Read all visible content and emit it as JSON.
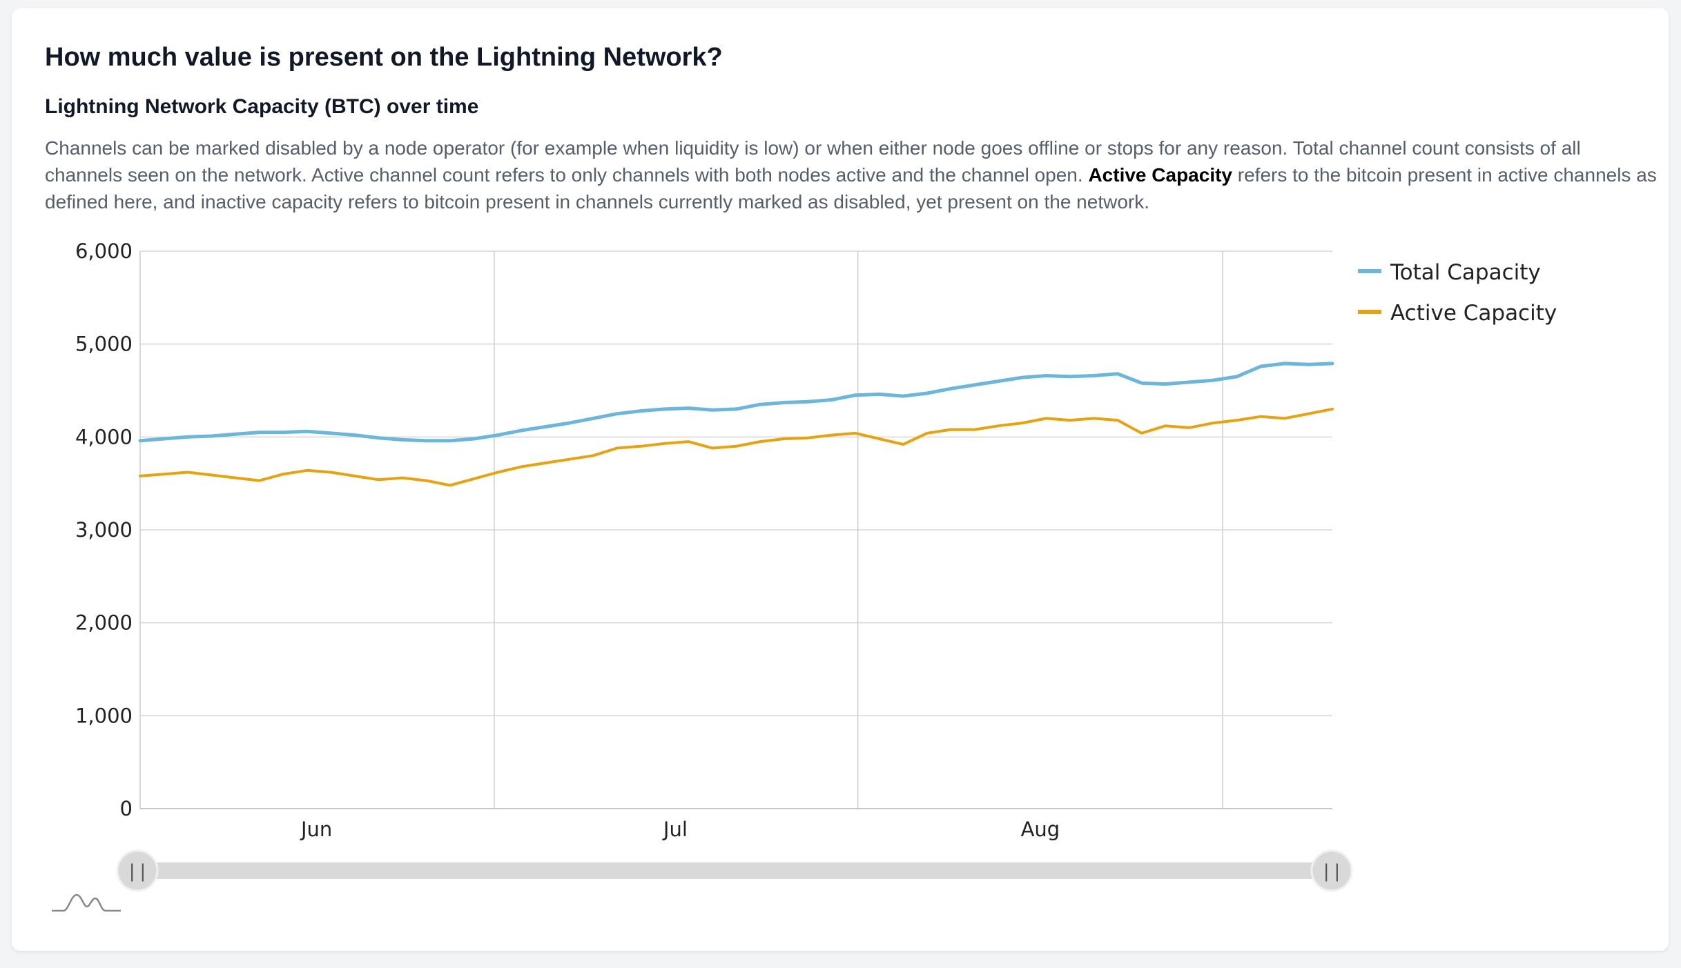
{
  "page": {
    "title": "How much value is present on the Lightning Network?",
    "subtitle": "Lightning Network Capacity (BTC) over time",
    "description_part1": "Channels can be marked disabled by a node operator (for example when liquidity is low) or when either node goes offline or stops for any reason. Total channel count consists of all channels seen on the network. Active channel count refers to only channels with both nodes active and the channel open. ",
    "description_bold": "Active Capacity",
    "description_part2": " refers to the bitcoin present in active channels as defined here, and inactive capacity refers to bitcoin present in channels currently marked as disabled, yet present on the network."
  },
  "chart_data": {
    "type": "line",
    "title": "Lightning Network Capacity (BTC) over time",
    "xlabel": "",
    "ylabel": "",
    "ylim": [
      0,
      6000
    ],
    "yticks": [
      0,
      1000,
      2000,
      3000,
      4000,
      5000,
      6000
    ],
    "ytick_labels": [
      "0",
      "1,000",
      "2,000",
      "3,000",
      "4,000",
      "5,000",
      "6,000"
    ],
    "xlim": [
      0,
      100
    ],
    "x_gridlines": [
      29.7,
      60.2,
      90.8
    ],
    "xtick_labels": [
      {
        "label": "Jun",
        "x": 14.8
      },
      {
        "label": "Jul",
        "x": 44.9
      },
      {
        "label": "Aug",
        "x": 75.5
      }
    ],
    "grid": true,
    "legend_position": "top-right",
    "series": [
      {
        "name": "Total Capacity",
        "color": "#6bb6dc",
        "x": [
          0,
          2,
          4,
          6,
          8,
          10,
          12,
          14,
          16,
          18,
          20,
          22,
          24,
          26,
          28,
          30,
          32,
          34,
          36,
          38,
          40,
          42,
          44,
          46,
          48,
          50,
          52,
          54,
          56,
          58,
          60,
          62,
          64,
          66,
          68,
          70,
          72,
          74,
          76,
          78,
          80,
          82,
          84,
          86,
          88,
          90,
          92,
          94,
          96,
          98,
          100
        ],
        "values": [
          3960,
          3980,
          4000,
          4010,
          4030,
          4050,
          4050,
          4060,
          4040,
          4020,
          3990,
          3970,
          3960,
          3960,
          3980,
          4020,
          4070,
          4110,
          4150,
          4200,
          4250,
          4280,
          4300,
          4310,
          4290,
          4300,
          4350,
          4370,
          4380,
          4400,
          4450,
          4460,
          4440,
          4470,
          4520,
          4560,
          4600,
          4640,
          4660,
          4650,
          4660,
          4680,
          4580,
          4570,
          4590,
          4610,
          4650,
          4760,
          4790,
          4780,
          4790
        ]
      },
      {
        "name": "Active Capacity",
        "color": "#e8a20c",
        "x": [
          0,
          2,
          4,
          6,
          8,
          10,
          12,
          14,
          16,
          18,
          20,
          22,
          24,
          26,
          28,
          30,
          32,
          34,
          36,
          38,
          40,
          42,
          44,
          46,
          48,
          50,
          52,
          54,
          56,
          58,
          60,
          62,
          64,
          66,
          68,
          70,
          72,
          74,
          76,
          78,
          80,
          82,
          84,
          86,
          88,
          90,
          92,
          94,
          96,
          98,
          100
        ],
        "values": [
          3580,
          3600,
          3620,
          3590,
          3560,
          3530,
          3600,
          3640,
          3620,
          3580,
          3540,
          3560,
          3530,
          3480,
          3550,
          3620,
          3680,
          3720,
          3760,
          3800,
          3880,
          3900,
          3930,
          3950,
          3880,
          3900,
          3950,
          3980,
          3990,
          4020,
          4040,
          3980,
          3920,
          4040,
          4080,
          4080,
          4120,
          4150,
          4200,
          4180,
          4200,
          4180,
          4040,
          4120,
          4100,
          4150,
          4180,
          4220,
          4200,
          4250,
          4300
        ]
      }
    ]
  },
  "zoom_slider": {
    "left_handle_label": "||",
    "right_handle_label": "||",
    "range_start": 0,
    "range_end": 100,
    "preview_icon": "sparkline-icon"
  }
}
